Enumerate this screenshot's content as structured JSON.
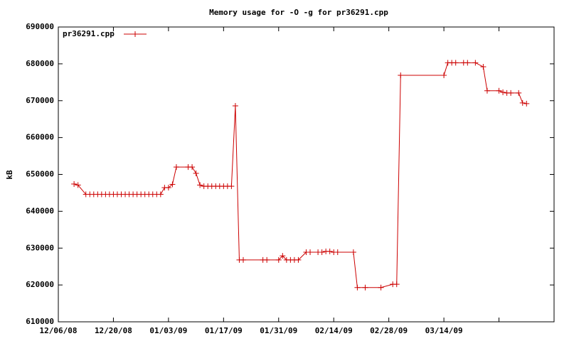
{
  "chart_data": {
    "type": "line",
    "title": "Memory usage for -O -g for pr36291.cpp",
    "ylabel": "kB",
    "legend": "top-left",
    "grid": false,
    "xlim": [
      "2008-12-06",
      "2009-04-11"
    ],
    "xticks": [
      {
        "value": "2008-12-06",
        "label": "12/06/08"
      },
      {
        "value": "2008-12-20",
        "label": "12/20/08"
      },
      {
        "value": "2009-01-03",
        "label": "01/03/09"
      },
      {
        "value": "2009-01-17",
        "label": "01/17/09"
      },
      {
        "value": "2009-01-31",
        "label": "01/31/09"
      },
      {
        "value": "2009-02-14",
        "label": "02/14/09"
      },
      {
        "value": "2009-02-28",
        "label": "02/28/09"
      },
      {
        "value": "2009-03-14",
        "label": "03/14/09"
      },
      {
        "value": "2009-03-28",
        "label": null
      }
    ],
    "ylim": [
      610000,
      690000
    ],
    "yticks": [
      610000,
      620000,
      630000,
      640000,
      650000,
      660000,
      670000,
      680000,
      690000
    ],
    "x": [
      "2008-12-10",
      "2008-12-11",
      "2008-12-13",
      "2008-12-14",
      "2008-12-15",
      "2008-12-16",
      "2008-12-17",
      "2008-12-18",
      "2008-12-19",
      "2008-12-20",
      "2008-12-21",
      "2008-12-22",
      "2008-12-23",
      "2008-12-24",
      "2008-12-25",
      "2008-12-26",
      "2008-12-27",
      "2008-12-28",
      "2008-12-29",
      "2008-12-30",
      "2008-12-31",
      "2009-01-01",
      "2009-01-02",
      "2009-01-03",
      "2009-01-04",
      "2009-01-05",
      "2009-01-08",
      "2009-01-09",
      "2009-01-10",
      "2009-01-11",
      "2009-01-12",
      "2009-01-13",
      "2009-01-14",
      "2009-01-15",
      "2009-01-16",
      "2009-01-17",
      "2009-01-18",
      "2009-01-19",
      "2009-01-20",
      "2009-01-21",
      "2009-01-22",
      "2009-01-27",
      "2009-01-28",
      "2009-01-31",
      "2009-02-01",
      "2009-02-02",
      "2009-02-03",
      "2009-02-04",
      "2009-02-05",
      "2009-02-07",
      "2009-02-08",
      "2009-02-10",
      "2009-02-11",
      "2009-02-12",
      "2009-02-13",
      "2009-02-14",
      "2009-02-15",
      "2009-02-19",
      "2009-02-20",
      "2009-02-22",
      "2009-02-26",
      "2009-03-01",
      "2009-03-02",
      "2009-03-03",
      "2009-03-14",
      "2009-03-15",
      "2009-03-16",
      "2009-03-17",
      "2009-03-19",
      "2009-03-20",
      "2009-03-22",
      "2009-03-24",
      "2009-03-25",
      "2009-03-28",
      "2009-03-29",
      "2009-03-30",
      "2009-03-31",
      "2009-04-02",
      "2009-04-03",
      "2009-04-04"
    ],
    "series": [
      {
        "name": "pr36291.cpp",
        "color": "#cc0000",
        "values": [
          647400,
          647100,
          644600,
          644600,
          644600,
          644600,
          644600,
          644600,
          644600,
          644600,
          644600,
          644600,
          644600,
          644600,
          644600,
          644600,
          644600,
          644600,
          644600,
          644600,
          644600,
          644600,
          646400,
          646400,
          647300,
          652000,
          652000,
          652000,
          650300,
          647100,
          646800,
          646800,
          646800,
          646800,
          646800,
          646800,
          646800,
          646800,
          668600,
          626800,
          626800,
          626800,
          626800,
          626800,
          627900,
          626800,
          626800,
          626800,
          626800,
          628900,
          628900,
          628900,
          628900,
          629100,
          629100,
          628900,
          628900,
          628900,
          619300,
          619300,
          619300,
          620200,
          620200,
          676900,
          676900,
          680300,
          680300,
          680300,
          680300,
          680300,
          680300,
          679200,
          672700,
          672700,
          672300,
          672100,
          672100,
          672100,
          669400,
          669200
        ]
      }
    ]
  }
}
